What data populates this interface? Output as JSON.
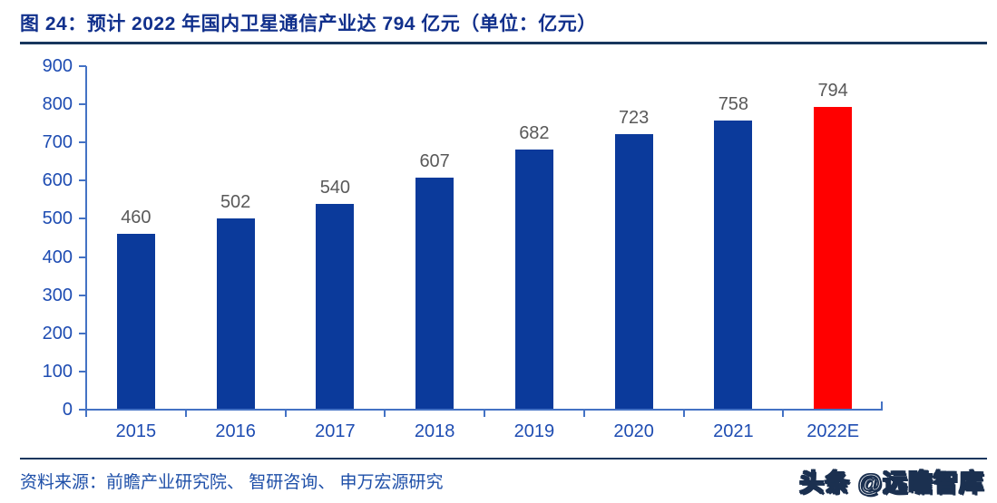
{
  "figure": {
    "title": "图 24：预计 2022 年国内卫星通信产业达 794 亿元（单位：亿元）",
    "source": "资料来源：前瞻产业研究院、 智研咨询、 申万宏源研究",
    "watermark": "头条 @远瞻智库"
  },
  "colors": {
    "title": "#11308C",
    "rule": "#17365D",
    "bar_default": "#0B3A9B",
    "bar_highlight": "#FF0000",
    "axis_line": "#4472C4",
    "axis_label": "#1E4CB2",
    "value_label": "#595959",
    "source": "#1E4FA8"
  },
  "chart_data": {
    "type": "bar",
    "title": "预计 2022 年国内卫星通信产业达 794 亿元",
    "unit": "亿元",
    "categories": [
      "2015",
      "2016",
      "2017",
      "2018",
      "2019",
      "2020",
      "2021",
      "2022E"
    ],
    "values": [
      460,
      502,
      540,
      607,
      682,
      723,
      758,
      794
    ],
    "highlight_index": 7,
    "ylim": [
      0,
      900
    ],
    "ytick_step": 100,
    "grid": false,
    "legend": false,
    "value_labels_shown": true
  }
}
